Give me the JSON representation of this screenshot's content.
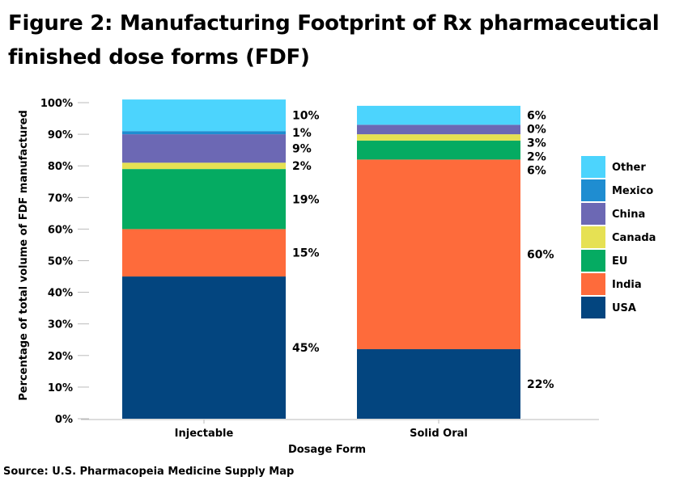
{
  "title_line1": "Figure 2: Manufacturing Footprint of Rx pharmaceutical",
  "title_line2": "finished dose forms (FDF)",
  "source": "Source: U.S. Pharmacopeia Medicine Supply Map",
  "chart_data": {
    "type": "bar",
    "stacked": true,
    "categories": [
      "Injectable",
      "Solid Oral"
    ],
    "xlabel": "Dosage Form",
    "ylabel": "Percentage of total volume of FDF manufactured",
    "ylim": [
      0,
      100
    ],
    "yticks": [
      "0%",
      "10%",
      "20%",
      "30%",
      "40%",
      "50%",
      "60%",
      "70%",
      "80%",
      "90%",
      "100%"
    ],
    "grid": false,
    "legend_position": "right",
    "series": [
      {
        "name": "USA",
        "color": "#03457f",
        "values": [
          45,
          22
        ],
        "labels": [
          "45%",
          "22%"
        ]
      },
      {
        "name": "India",
        "color": "#fe6b3b",
        "values": [
          15,
          60
        ],
        "labels": [
          "15%",
          "60%"
        ]
      },
      {
        "name": "EU",
        "color": "#05ab62",
        "values": [
          19,
          6
        ],
        "labels": [
          "19%",
          "6%"
        ]
      },
      {
        "name": "Canada",
        "color": "#e6e153",
        "values": [
          2,
          2
        ],
        "labels": [
          "2%",
          "2%"
        ]
      },
      {
        "name": "China",
        "color": "#6c68b4",
        "values": [
          9,
          3
        ],
        "labels": [
          "9%",
          "3%"
        ]
      },
      {
        "name": "Mexico",
        "color": "#1f8dd1",
        "values": [
          1,
          0
        ],
        "labels": [
          "1%",
          "0%"
        ]
      },
      {
        "name": "Other",
        "color": "#4cd4fd",
        "values": [
          10,
          6
        ],
        "labels": [
          "10%",
          "6%"
        ]
      }
    ]
  }
}
